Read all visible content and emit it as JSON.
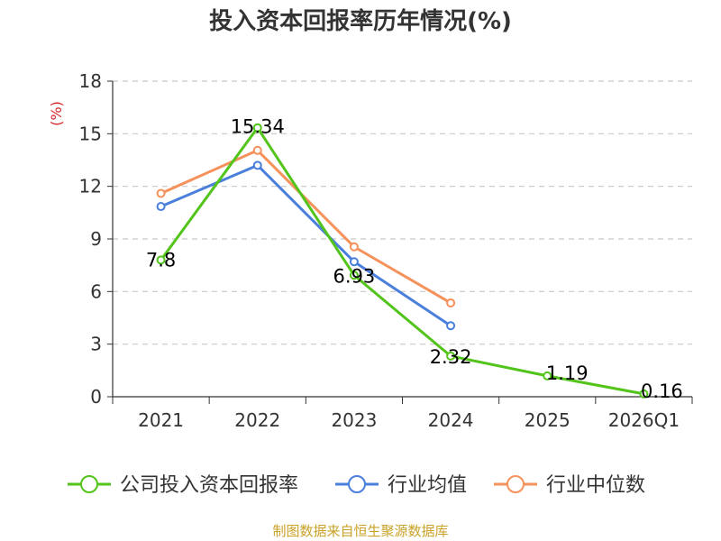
{
  "chart_data": {
    "type": "line",
    "title": "投入资本回报率历年情况(%)",
    "ylabel": "(%)",
    "xlabel": "",
    "categories": [
      "2021",
      "2022",
      "2023",
      "2024",
      "2025",
      "2026Q1"
    ],
    "ylim": [
      0,
      18
    ],
    "yticks": [
      0,
      3,
      6,
      9,
      12,
      15,
      18
    ],
    "grid": true,
    "legend_position": "bottom",
    "series": [
      {
        "name": "公司投入资本回报率",
        "color": "#52c41a",
        "values": [
          7.8,
          15.34,
          6.93,
          2.32,
          1.19,
          0.16
        ],
        "labels": [
          "7.8",
          "15.34",
          "6.93",
          "2.32",
          "1.19",
          "0.16"
        ]
      },
      {
        "name": "行业均值",
        "color": "#4a7fdc",
        "values": [
          10.85,
          13.2,
          7.7,
          4.05,
          null,
          null
        ]
      },
      {
        "name": "行业中位数",
        "color": "#f5915a",
        "values": [
          11.6,
          14.05,
          8.55,
          5.35,
          null,
          null
        ]
      }
    ],
    "source": "制图数据来自恒生聚源数据库"
  }
}
